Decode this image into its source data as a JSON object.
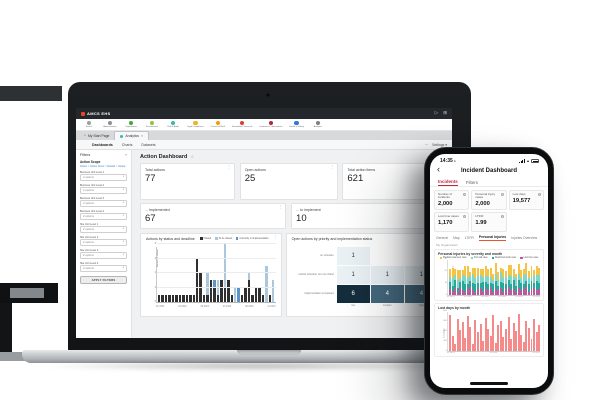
{
  "laptop": {
    "appbar": {
      "logo_text": "AMCS EHS",
      "right_icons": [
        {
          "name": "launch-icon",
          "glyph": "▷"
        },
        {
          "name": "apps-icon",
          "glyph": "⊞"
        }
      ]
    },
    "toolbar": {
      "modules": [
        {
          "label": "Search",
          "color": "#9aa0a5"
        },
        {
          "label": "Administration",
          "color": "#8a9095"
        },
        {
          "label": "Organization",
          "color": "#3faa35"
        },
        {
          "label": "Environment",
          "color": "#8dc63f"
        },
        {
          "label": "Risk & Audit",
          "color": "#35b8b0"
        },
        {
          "label": "Legal Compliance",
          "color": "#f0b323"
        },
        {
          "label": "Control of Work",
          "color": "#f59b00"
        },
        {
          "label": "Hazardous Chemicals",
          "color": "#e03c31"
        },
        {
          "label": "Incidents & Observations",
          "color": "#b02a37"
        },
        {
          "label": "Health & Safety",
          "color": "#2e7dd1"
        },
        {
          "label": "Analytics",
          "color": "#7a8084"
        }
      ]
    },
    "tabs": [
      {
        "label": "My Start Page",
        "active": false
      },
      {
        "label": "Analytics",
        "active": true,
        "closable": true
      }
    ],
    "subnav": {
      "items": [
        "Dashboards",
        "Charts",
        "Datasets"
      ],
      "active": "Dashboards",
      "more_glyph": "⋯",
      "settings_label": "Settings",
      "settings_caret": "▾"
    },
    "sidebar": {
      "title": "Filters",
      "collapse_glyph": "»",
      "section": "Action Scope",
      "breadcrumb": "Action > Action Items > Details > Scope",
      "filters": [
        {
          "label": "Business Unit Level 1",
          "value": "2 options"
        },
        {
          "label": "Business Unit Level 2",
          "value": "2 options"
        },
        {
          "label": "Business Unit Level 3",
          "value": "2 options"
        },
        {
          "label": "Business Unit Level 4",
          "value": "2 options"
        },
        {
          "label": "Site Unit Level 1",
          "value": "2 options"
        },
        {
          "label": "Site Unit Level 2",
          "value": "2 options"
        },
        {
          "label": "Site Unit Level 3",
          "value": "2 options"
        },
        {
          "label": "Site Unit Level 4",
          "value": "2 options"
        }
      ],
      "apply_label": "APPLY FILTERS"
    },
    "page_title": "Action Dashboard",
    "stats_row1": [
      {
        "label": "Total actions",
        "value": "77"
      },
      {
        "label": "Open actions",
        "value": "25"
      },
      {
        "label": "Total action items",
        "value": "621"
      }
    ],
    "stats_row2": [
      {
        "label": "... implemented",
        "value": "67"
      },
      {
        "label": "... to implement",
        "value": "10"
      }
    ]
  },
  "phone": {
    "status": {
      "time": "14:35",
      "loc_glyph": "▸"
    },
    "back_glyph": "‹",
    "header_title": "Incident Dashboard",
    "tabs": [
      {
        "label": "Incidents",
        "active": true
      },
      {
        "label": "Filters",
        "active": false
      }
    ],
    "stats": [
      {
        "label": "Number of incidents",
        "value": "2,000"
      },
      {
        "label": "Personal injury cases",
        "value": "2,000"
      },
      {
        "label": "Lost days",
        "value": "19,577"
      },
      {
        "label": "Lost time cases",
        "value": "1,170"
      },
      {
        "label": "LTIFR",
        "value": "1.99"
      }
    ],
    "chart_tabs": [
      "General",
      "Map",
      "LTIFR",
      "Personal Injuries",
      "Injuries Overview"
    ],
    "active_chart_tab": "Personal Injuries",
    "org_label": "My Organization"
  },
  "chart_data": [
    {
      "type": "bar",
      "title": "Actions by status and deadline",
      "ylabel": "Number of actions",
      "ylim": [
        0,
        8
      ],
      "yticks": [
        0,
        2,
        4,
        6,
        8
      ],
      "xticklabels": [
        "01.2023",
        "03.2023",
        "05.2023",
        "07.2023",
        "09.2023",
        "11.2023"
      ],
      "legend": [
        {
          "label": "Closed",
          "color": "#2f2f2f"
        },
        {
          "label": "To be closed",
          "color": "#aac7dd"
        },
        {
          "label": "Currently in implementation",
          "color": "#5b94c8"
        }
      ],
      "series_order": [
        "closed",
        "to_be_closed",
        "in_implementation"
      ],
      "bars": [
        [
          1,
          0,
          0
        ],
        [
          1,
          0,
          0
        ],
        [
          1,
          0,
          0
        ],
        [
          1,
          0,
          0
        ],
        [
          1,
          0,
          0
        ],
        [
          1,
          0,
          0
        ],
        [
          1,
          0,
          0
        ],
        [
          1,
          0,
          0
        ],
        [
          1,
          0,
          0
        ],
        [
          1,
          0,
          0
        ],
        [
          1,
          0,
          0
        ],
        [
          6,
          0,
          0
        ],
        [
          4,
          0,
          0
        ],
        [
          1,
          0,
          0
        ],
        [
          1,
          3,
          0
        ],
        [
          3,
          0,
          0
        ],
        [
          2,
          0,
          1
        ],
        [
          1,
          2,
          0
        ],
        [
          3,
          0,
          0
        ],
        [
          2,
          6,
          0
        ],
        [
          3,
          0,
          0
        ],
        [
          1,
          0,
          0
        ],
        [
          0,
          2,
          0
        ],
        [
          0,
          0,
          2
        ],
        [
          1,
          0,
          0
        ],
        [
          2,
          0,
          0
        ],
        [
          3,
          1,
          0
        ],
        [
          1,
          0,
          0
        ],
        [
          2,
          0,
          0
        ],
        [
          2,
          0,
          0
        ],
        [
          1,
          0,
          0
        ],
        [
          0,
          5,
          0
        ],
        [
          1,
          0,
          0
        ],
        [
          0,
          3,
          0
        ]
      ]
    },
    {
      "type": "heatmap",
      "title": "Open actions by priority and implementation status",
      "rows": [
        "on schedule",
        "behind schedule, but not critical",
        "implementation completed"
      ],
      "cols": [
        "low",
        "medium",
        "high"
      ],
      "values": [
        [
          1,
          null,
          null
        ],
        [
          1,
          1,
          1
        ],
        [
          6,
          4,
          4
        ]
      ],
      "cell_colors": {
        "1": "#eaf2f6",
        "4": "#44687d",
        "6": "#152e3d"
      },
      "text_colors": {
        "1": "#333333",
        "4": "#ffffff",
        "6": "#ffffff"
      }
    },
    {
      "type": "stacked-bar",
      "title": "Personal injuries by severity and month",
      "ylabel": "Number of personal injuries",
      "ylim": [
        0,
        30
      ],
      "yticks": [
        0,
        10,
        20,
        30
      ],
      "xticklabels": [
        "01.2023",
        "07.2023",
        "01.2024",
        "07.2024",
        "01.2025",
        "12.2025"
      ],
      "legend": [
        {
          "label": "Medical treatment case",
          "color": "#f5c445"
        },
        {
          "label": "First aid case",
          "color": "#7fd6c9"
        },
        {
          "label": "Restricted work case",
          "color": "#2aa79b"
        },
        {
          "label": "Lost time case",
          "color": "#bb5a9e"
        }
      ],
      "series_colors_bottom_up": [
        "#bb5a9e",
        "#2aa79b",
        "#7fd6c9",
        "#f5c445"
      ],
      "bars": [
        [
          5,
          6,
          4,
          7
        ],
        [
          3,
          5,
          6,
          9
        ],
        [
          6,
          7,
          4,
          5
        ],
        [
          2,
          4,
          7,
          8
        ],
        [
          6,
          5,
          3,
          7
        ],
        [
          4,
          8,
          5,
          4
        ],
        [
          3,
          6,
          7,
          8
        ],
        [
          5,
          4,
          6,
          9
        ],
        [
          7,
          5,
          4,
          3
        ],
        [
          4,
          6,
          8,
          5
        ],
        [
          2,
          7,
          5,
          9
        ],
        [
          5,
          5,
          6,
          7
        ],
        [
          6,
          4,
          7,
          5
        ],
        [
          3,
          8,
          4,
          7
        ],
        [
          5,
          6,
          5,
          8
        ],
        [
          4,
          5,
          7,
          6
        ],
        [
          7,
          3,
          5,
          8
        ],
        [
          3,
          6,
          4,
          5
        ],
        [
          5,
          7,
          6,
          9
        ],
        [
          4,
          4,
          5,
          6
        ],
        [
          6,
          5,
          8,
          4
        ],
        [
          3,
          7,
          5,
          7
        ],
        [
          5,
          4,
          6,
          5
        ],
        [
          7,
          6,
          4,
          8
        ],
        [
          4,
          5,
          7,
          9
        ],
        [
          5,
          8,
          3,
          6
        ],
        [
          3,
          5,
          6,
          4
        ],
        [
          6,
          7,
          5,
          8
        ],
        [
          4,
          6,
          4,
          7
        ],
        [
          5,
          4,
          8,
          5
        ],
        [
          7,
          5,
          6,
          9
        ],
        [
          3,
          6,
          5,
          6
        ],
        [
          5,
          7,
          4,
          8
        ],
        [
          6,
          4,
          6,
          5
        ],
        [
          4,
          8,
          5,
          7
        ],
        [
          5,
          5,
          7,
          6
        ]
      ]
    },
    {
      "type": "bar",
      "title": "Lost days by month",
      "ylabel": "Lost days",
      "ylim": [
        0,
        800
      ],
      "yticks": [
        0,
        200,
        400,
        600,
        800
      ],
      "color": "#f48a8a",
      "xticklabels": [
        "01.2023",
        "01.2024",
        "01.2025"
      ],
      "values": [
        720,
        310,
        150,
        640,
        420,
        580,
        260,
        700,
        480,
        150,
        620,
        380,
        540,
        200,
        660,
        440,
        300,
        720,
        160,
        520,
        610,
        280,
        450,
        680,
        240,
        560,
        400,
        740,
        330,
        180,
        600,
        470,
        250,
        640,
        380,
        520
      ]
    }
  ]
}
